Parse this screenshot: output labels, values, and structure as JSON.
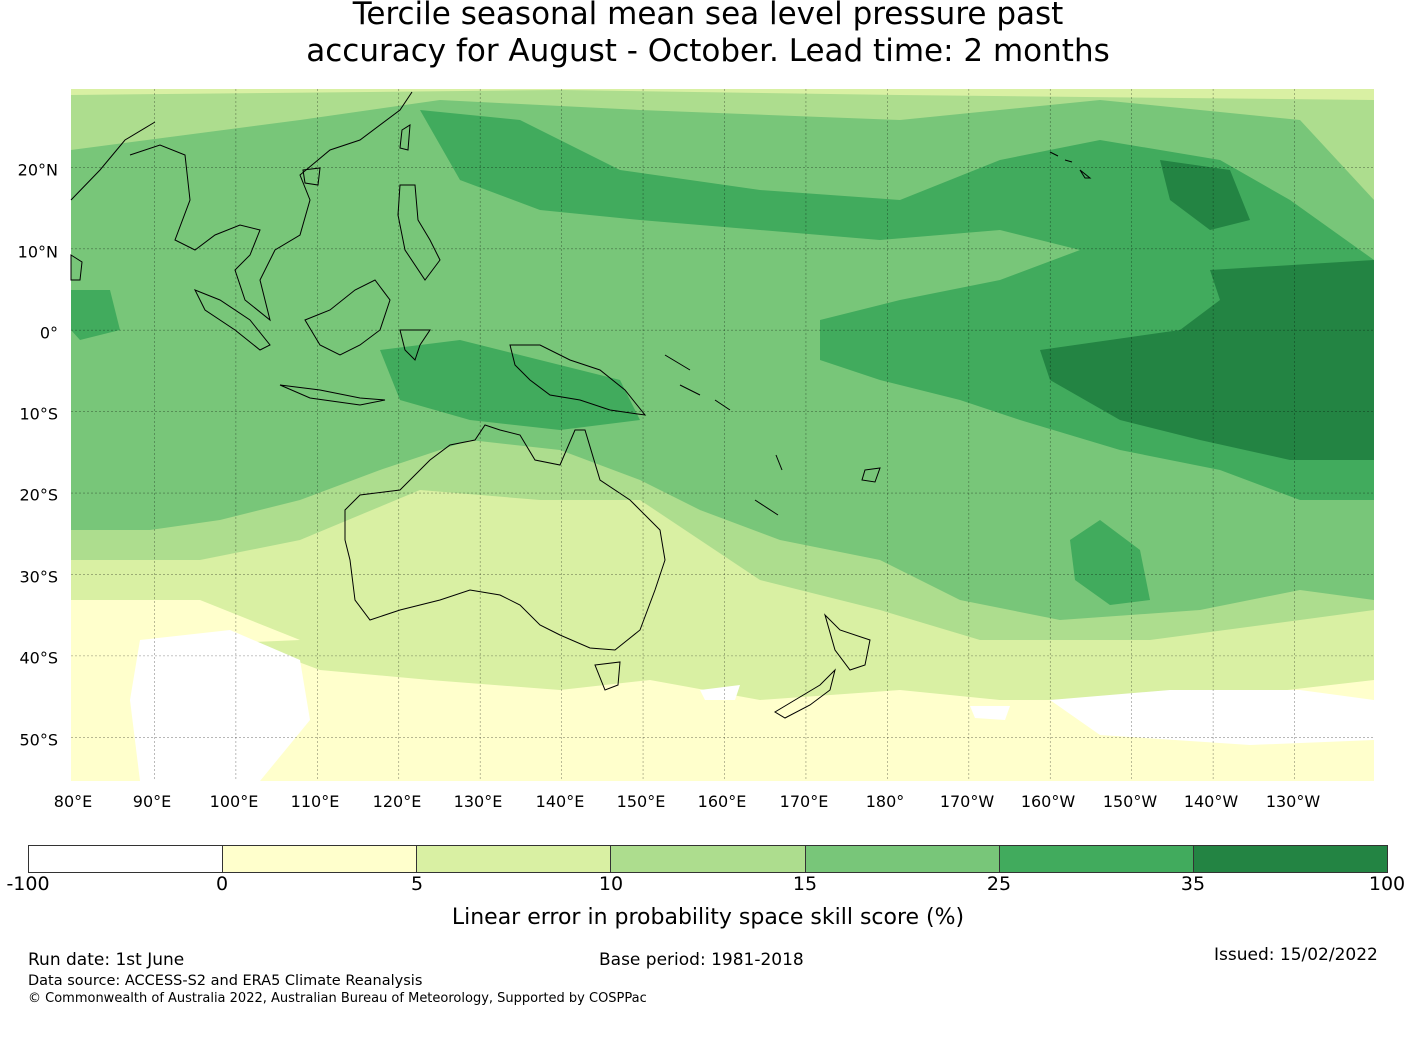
{
  "title": {
    "line1": "Tercile seasonal mean sea level pressure past",
    "line2": "accuracy for August - October. Lead time: 2 months"
  },
  "map": {
    "lon_labels": [
      "80°E",
      "90°E",
      "100°E",
      "110°E",
      "120°E",
      "130°E",
      "140°E",
      "150°E",
      "160°E",
      "170°E",
      "180°",
      "170°W",
      "160°W",
      "150°W",
      "140°W",
      "130°W"
    ],
    "lat_labels": [
      "20°N",
      "10°N",
      "0°",
      "10°S",
      "20°S",
      "30°S",
      "40°S",
      "50°S"
    ],
    "extent": {
      "lon_min": 80,
      "lon_max": 240,
      "lat_min": -55,
      "lat_max": 30
    }
  },
  "colorbar": {
    "label": "Linear error in probability space skill score (%)",
    "ticks": [
      "-100",
      "0",
      "5",
      "10",
      "15",
      "25",
      "35",
      "100"
    ],
    "colors": [
      "#ffffff",
      "#ffffcc",
      "#d9f0a3",
      "#addd8e",
      "#78c679",
      "#41ab5d",
      "#238443"
    ]
  },
  "footer": {
    "run_date": "Run date: 1st June",
    "base_period": "Base period: 1981-2018",
    "issued": "Issued: 15/02/2022",
    "data_source": "Data source: ACCESS-S2 and ERA5 Climate Reanalysis",
    "copyright": "© Commonwealth of Australia 2022, Australian Bureau of Meteorology, Supported by COSPPac"
  }
}
